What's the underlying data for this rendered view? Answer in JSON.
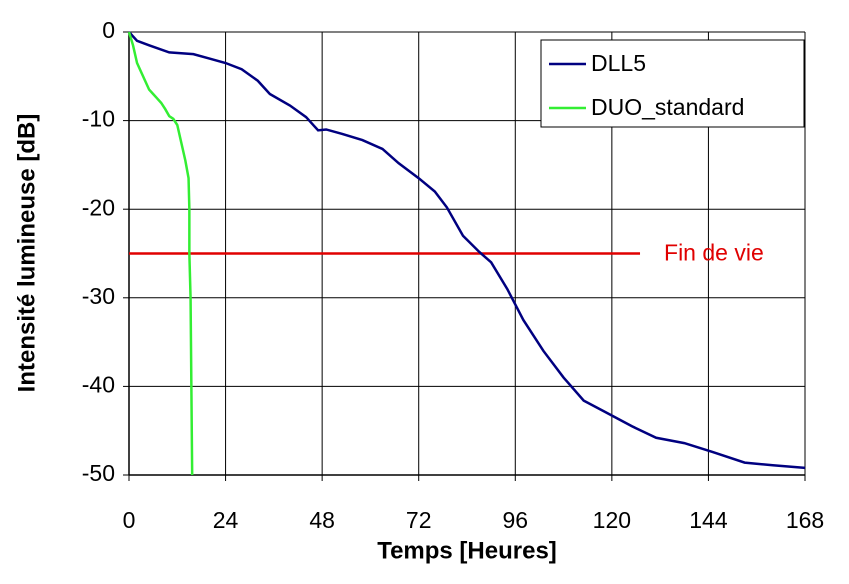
{
  "chart_data": {
    "type": "line",
    "x_label": "Temps [Heures]",
    "y_label": "Intensité lumineuse [dB]",
    "xlim": [
      0,
      168
    ],
    "xticks": [
      0,
      24,
      48,
      72,
      96,
      120,
      144,
      168
    ],
    "ylim": [
      -50,
      0
    ],
    "yticks": [
      -50,
      -40,
      -30,
      -20,
      -10,
      0
    ],
    "grid": true,
    "legend": "top-right",
    "series": [
      {
        "name": "DLL5",
        "color": "#000080",
        "x": [
          0,
          2,
          5,
          10,
          13,
          16,
          20,
          24,
          28,
          32,
          35,
          40,
          44,
          46,
          47,
          49,
          53,
          58,
          63,
          67,
          72,
          76,
          79,
          83,
          87,
          90,
          94,
          98,
          103,
          108,
          113,
          118,
          125,
          131,
          138,
          145,
          153,
          160,
          168
        ],
        "values": [
          0,
          -1,
          -1.5,
          -2.3,
          -2.4,
          -2.5,
          -3,
          -3.5,
          -4.2,
          -5.5,
          -7,
          -8.3,
          -9.6,
          -10.6,
          -11.1,
          -11,
          -11.5,
          -12.2,
          -13.2,
          -14.8,
          -16.5,
          -18,
          -19.8,
          -23,
          -24.8,
          -26,
          -29,
          -32.5,
          -36,
          -39,
          -41.6,
          -42.8,
          -44.5,
          -45.8,
          -46.4,
          -47.4,
          -48.6,
          -48.9,
          -49.2
        ]
      },
      {
        "name": "DUO_standard",
        "color": "#33ee33",
        "x": [
          0,
          1,
          2,
          3,
          4,
          5,
          6,
          7,
          8,
          9,
          10,
          11,
          12,
          13,
          14,
          14.8,
          15,
          15,
          15.3,
          15.5,
          15.7
        ],
        "values": [
          0,
          -1.5,
          -3.5,
          -4.5,
          -5.5,
          -6.5,
          -7,
          -7.5,
          -8,
          -8.7,
          -9.5,
          -9.8,
          -10.5,
          -12.5,
          -14.5,
          -16.5,
          -20,
          -25,
          -30,
          -40,
          -50
        ]
      }
    ],
    "reference_line": {
      "label": "Fin de vie",
      "value": -25,
      "x": [
        0,
        127
      ],
      "color": "#e00000"
    }
  }
}
